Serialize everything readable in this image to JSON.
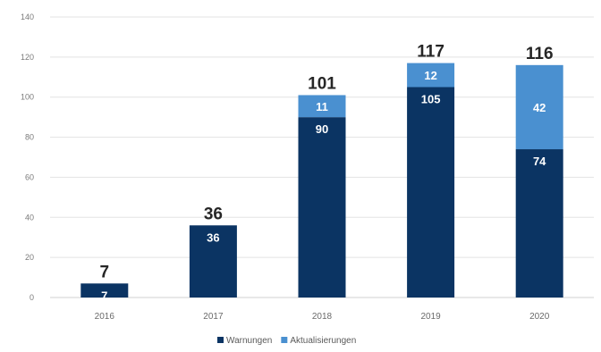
{
  "chart_data": {
    "type": "bar",
    "stacked": true,
    "categories": [
      "2016",
      "2017",
      "2018",
      "2019",
      "2020"
    ],
    "series": [
      {
        "name": "Warnungen",
        "values": [
          7,
          36,
          90,
          105,
          74
        ],
        "color": "#0b3463"
      },
      {
        "name": "Aktualisierungen",
        "values": [
          0,
          0,
          11,
          12,
          42
        ],
        "color": "#4a90d0"
      }
    ],
    "totals": [
      "7",
      "36",
      "101",
      "117",
      "116"
    ],
    "bar_labels": [
      [
        "7",
        "36",
        "90",
        "105",
        "74"
      ],
      [
        "",
        "",
        "11",
        "12",
        "42"
      ]
    ],
    "ylim": [
      0,
      140
    ],
    "yticks": [
      0,
      20,
      40,
      60,
      80,
      100,
      120,
      140
    ],
    "ytick_labels": [
      "0",
      "20",
      "40",
      "60",
      "80",
      "100",
      "120",
      "140"
    ],
    "grid": true,
    "legend_position": "bottom",
    "title": "",
    "xlabel": "",
    "ylabel": ""
  }
}
